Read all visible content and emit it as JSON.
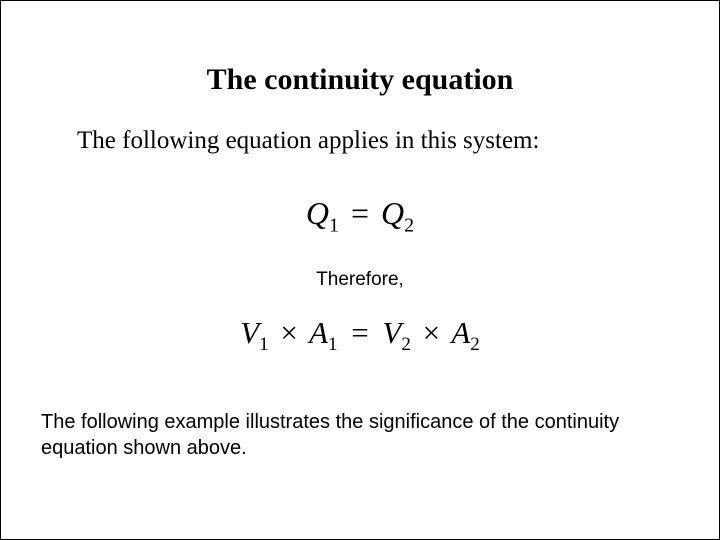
{
  "title": "The continuity equation",
  "intro": "The following equation applies in this system:",
  "equation1": {
    "lhs_var": "Q",
    "lhs_sub": "1",
    "eq": "=",
    "rhs_var": "Q",
    "rhs_sub": "2"
  },
  "therefore": "Therefore,",
  "equation2": {
    "v1_var": "V",
    "v1_sub": "1",
    "times1": "×",
    "a1_var": "A",
    "a1_sub": "1",
    "eq": "=",
    "v2_var": "V",
    "v2_sub": "2",
    "times2": "×",
    "a2_var": "A",
    "a2_sub": "2"
  },
  "closing": "The following example illustrates the significance of the continuity equation shown above.",
  "styles": {
    "title_fontsize": 30,
    "intro_fontsize": 25,
    "equation_fontsize": 32,
    "therefore_fontsize": 19,
    "closing_fontsize": 20,
    "background_color": "#ffffff",
    "text_color": "#000000",
    "serif_font": "Times New Roman",
    "sans_font": "Verdana"
  }
}
